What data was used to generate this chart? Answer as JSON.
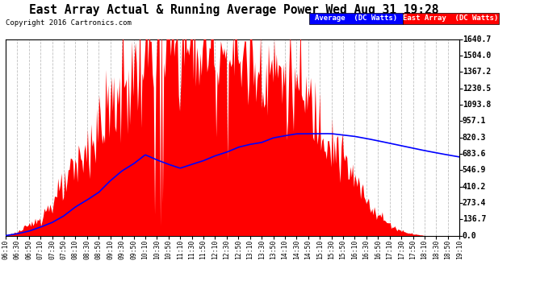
{
  "title": "East Array Actual & Running Average Power Wed Aug 31 19:28",
  "copyright": "Copyright 2016 Cartronics.com",
  "ylabel_right_values": [
    0.0,
    136.7,
    273.4,
    410.2,
    546.9,
    683.6,
    820.3,
    957.1,
    1093.8,
    1230.5,
    1367.2,
    1504.0,
    1640.7
  ],
  "ymax": 1640.7,
  "ymin": 0.0,
  "legend_blue_label": "Average  (DC Watts)",
  "legend_red_label": "East Array  (DC Watts)",
  "bg_color": "#ffffff",
  "plot_bg_color": "#ffffff",
  "grid_color": "#b0b0b0",
  "fill_color": "#ff0000",
  "line_color": "#0000ff",
  "tick_labels": [
    "06:10",
    "06:30",
    "06:50",
    "07:10",
    "07:30",
    "07:50",
    "08:10",
    "08:30",
    "08:50",
    "09:10",
    "09:30",
    "09:50",
    "10:10",
    "10:30",
    "10:50",
    "11:10",
    "11:30",
    "11:50",
    "12:10",
    "12:30",
    "12:50",
    "13:10",
    "13:30",
    "13:50",
    "14:10",
    "14:30",
    "14:50",
    "15:10",
    "15:30",
    "15:50",
    "16:10",
    "16:30",
    "16:50",
    "17:10",
    "17:30",
    "17:50",
    "18:10",
    "18:30",
    "18:50",
    "19:10"
  ]
}
